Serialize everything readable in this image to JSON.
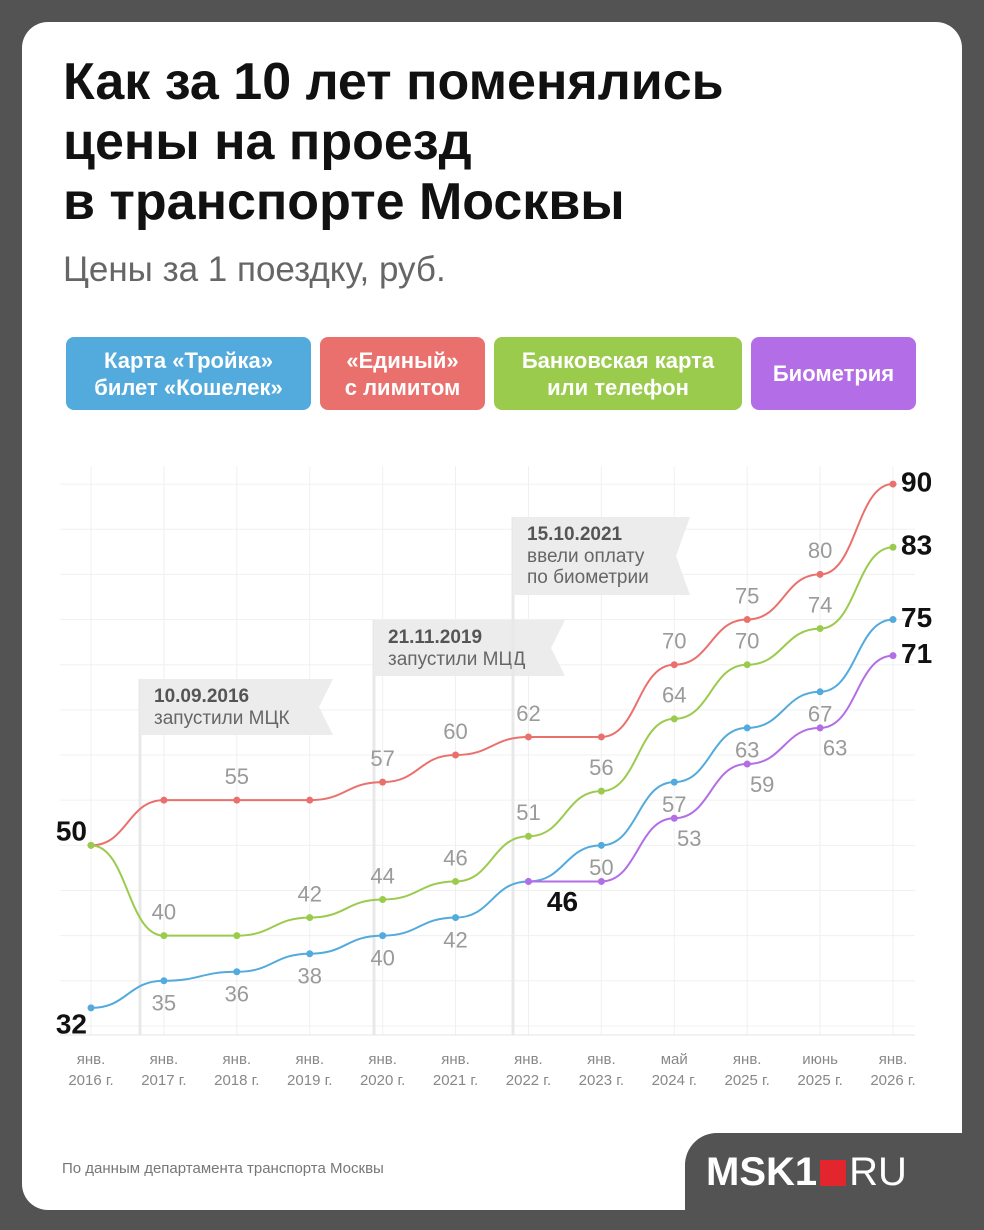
{
  "header": {
    "title": "Как за 10 лет поменялись\nцены на проезд\nв транспорте Москвы",
    "subtitle": "Цены за 1 поездку, руб."
  },
  "chart_data": {
    "type": "line",
    "categories": [
      [
        "янв.",
        "2016 г."
      ],
      [
        "янв.",
        "2017 г."
      ],
      [
        "янв.",
        "2018 г."
      ],
      [
        "янв.",
        "2019 г."
      ],
      [
        "янв.",
        "2020 г."
      ],
      [
        "янв.",
        "2021 г."
      ],
      [
        "янв.",
        "2022 г."
      ],
      [
        "янв.",
        "2023 г."
      ],
      [
        "май",
        "2024 г."
      ],
      [
        "янв.",
        "2025 г."
      ],
      [
        "июнь",
        "2025 г."
      ],
      [
        "янв.",
        "2026 г."
      ]
    ],
    "series": [
      {
        "name": "Карта «Тройка»\nбилет «Кошелек»",
        "color": "#52aadd",
        "values": [
          32,
          35,
          36,
          38,
          40,
          42,
          46,
          50,
          57,
          63,
          67,
          75
        ],
        "value_labels": [
          "32",
          "35",
          "36",
          "38",
          "40",
          "42",
          null,
          "50",
          "57",
          "63",
          "67",
          "75"
        ]
      },
      {
        "name": "«Единый»\nс лимитом",
        "color": "#ea706d",
        "values": [
          50,
          55,
          55,
          55,
          57,
          60,
          62,
          62,
          70,
          75,
          80,
          90
        ],
        "value_labels": [
          "50",
          null,
          "55",
          null,
          "57",
          "60",
          "62",
          null,
          "70",
          "75",
          "80",
          "90"
        ]
      },
      {
        "name": "Банковская карта\nили телефон",
        "color": "#9bcb4d",
        "values": [
          50,
          40,
          40,
          42,
          44,
          46,
          51,
          56,
          64,
          70,
          74,
          83
        ],
        "value_labels": [
          null,
          "40",
          null,
          "42",
          "44",
          "46",
          "51",
          "56",
          "64",
          "70",
          "74",
          "83"
        ]
      },
      {
        "name": "Биометрия",
        "color": "#b36de6",
        "values": [
          null,
          null,
          null,
          null,
          null,
          null,
          46,
          46,
          53,
          59,
          63,
          71
        ],
        "value_labels": [
          null,
          null,
          null,
          null,
          null,
          null,
          "46",
          null,
          "53",
          "59",
          "63",
          "71"
        ]
      }
    ],
    "ylim": [
      29,
      92
    ],
    "yticks": [
      30,
      35,
      40,
      45,
      50,
      55,
      60,
      65,
      70,
      75,
      80,
      85,
      90
    ],
    "grid": true,
    "annotations": [
      {
        "date": "10.09.2016",
        "text": [
          "запустили МЦК"
        ]
      },
      {
        "date": "21.11.2019",
        "text": [
          "запустили МЦД"
        ]
      },
      {
        "date": "15.10.2021",
        "text": [
          "ввели оплату",
          "по биометрии"
        ]
      }
    ]
  },
  "footer": {
    "source": "По данным департамента транспорта Москвы",
    "logo": {
      "left": "MSK1",
      "right": "RU"
    }
  }
}
